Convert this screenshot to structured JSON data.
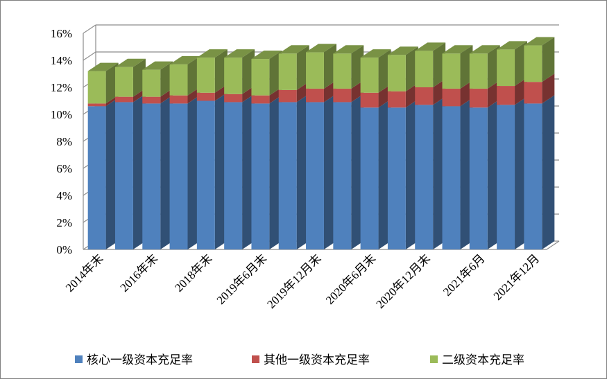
{
  "chart_data": {
    "type": "bar",
    "stacked": true,
    "three_d": true,
    "title": "",
    "xlabel": "",
    "ylabel": "",
    "ylim": [
      0,
      16
    ],
    "y_unit": "%",
    "y_ticks": [
      "0%",
      "2%",
      "4%",
      "6%",
      "8%",
      "10%",
      "12%",
      "14%",
      "16%"
    ],
    "grid": true,
    "legend_position": "bottom",
    "categories": [
      "2014年末",
      "",
      "2016年末",
      "",
      "2018年末",
      "",
      "2019年6月末",
      "",
      "2019年12月末",
      "",
      "2020年6月末",
      "",
      "2020年12月末",
      "",
      "2021年6月",
      "",
      "2021年12月"
    ],
    "x_tick_labels": [
      "2014年末",
      "2016年末",
      "2018年末",
      "2019年6月末",
      "2019年12月末",
      "2020年6月末",
      "2020年12月末",
      "2021年6月",
      "2021年12月"
    ],
    "series": [
      {
        "name": "核心一级资本充足率",
        "color": "#4f81bd",
        "values": [
          10.6,
          10.9,
          10.8,
          10.8,
          11.0,
          10.9,
          10.8,
          10.9,
          10.9,
          10.9,
          10.5,
          10.5,
          10.7,
          10.6,
          10.5,
          10.7,
          10.8
        ]
      },
      {
        "name": "其他一级资本充足率",
        "color": "#c0504d",
        "values": [
          0.2,
          0.4,
          0.5,
          0.6,
          0.6,
          0.6,
          0.6,
          0.9,
          1.0,
          1.0,
          1.1,
          1.2,
          1.3,
          1.3,
          1.4,
          1.4,
          1.6
        ]
      },
      {
        "name": "二级资本充足率",
        "color": "#9bbb59",
        "values": [
          2.4,
          2.2,
          2.0,
          2.3,
          2.6,
          2.7,
          2.7,
          2.7,
          2.7,
          2.6,
          2.6,
          2.7,
          2.7,
          2.6,
          2.6,
          2.7,
          2.7
        ]
      }
    ]
  }
}
